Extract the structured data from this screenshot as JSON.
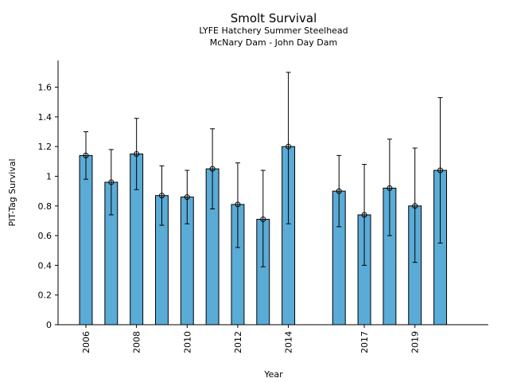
{
  "chart_data": {
    "type": "bar",
    "title": "Smolt Survival",
    "subtitle_lines": [
      "LYFE Hatchery Summer Steelhead",
      "McNary Dam - John Day Dam"
    ],
    "xlabel": "Year",
    "ylabel": "PIT-Tag Survival",
    "ylim": [
      0,
      1.78
    ],
    "yticks": [
      0,
      0.2,
      0.4,
      0.6,
      0.8,
      1,
      1.2,
      1.4,
      1.6
    ],
    "ytick_labels": [
      "0",
      "0.2",
      "0.4",
      "0.6",
      "0.8",
      "1",
      "1.2",
      "1.4",
      "1.6"
    ],
    "x_range": [
      2004.9,
      2021.9
    ],
    "xticks": [
      2006,
      2008,
      2010,
      2012,
      2014,
      2017,
      2019
    ],
    "xtick_labels": [
      "2006",
      "2008",
      "2010",
      "2012",
      "2014",
      "2017",
      "2019"
    ],
    "bar_color": "#5aabd6",
    "bars": [
      {
        "year": 2006,
        "value": 1.14,
        "lower": 0.98,
        "upper": 1.3
      },
      {
        "year": 2007,
        "value": 0.96,
        "lower": 0.74,
        "upper": 1.18
      },
      {
        "year": 2008,
        "value": 1.15,
        "lower": 0.91,
        "upper": 1.39
      },
      {
        "year": 2009,
        "value": 0.87,
        "lower": 0.67,
        "upper": 1.07
      },
      {
        "year": 2010,
        "value": 0.86,
        "lower": 0.68,
        "upper": 1.04
      },
      {
        "year": 2011,
        "value": 1.05,
        "lower": 0.78,
        "upper": 1.32
      },
      {
        "year": 2012,
        "value": 0.81,
        "lower": 0.52,
        "upper": 1.09
      },
      {
        "year": 2013,
        "value": 0.71,
        "lower": 0.39,
        "upper": 1.04
      },
      {
        "year": 2014,
        "value": 1.2,
        "lower": 0.68,
        "upper": 1.7
      },
      {
        "year": 2016,
        "value": 0.9,
        "lower": 0.66,
        "upper": 1.14
      },
      {
        "year": 2017,
        "value": 0.74,
        "lower": 0.4,
        "upper": 1.08
      },
      {
        "year": 2018,
        "value": 0.92,
        "lower": 0.6,
        "upper": 1.25
      },
      {
        "year": 2019,
        "value": 0.8,
        "lower": 0.42,
        "upper": 1.19
      },
      {
        "year": 2020,
        "value": 1.04,
        "lower": 0.55,
        "upper": 1.53
      }
    ]
  }
}
